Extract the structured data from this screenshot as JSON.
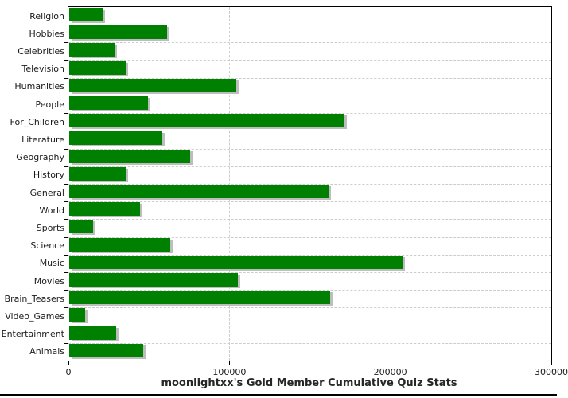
{
  "chart_data": {
    "type": "bar",
    "orientation": "horizontal",
    "title": "moonlightxx's Gold Member Cumulative Quiz Stats",
    "categories": [
      "Religion",
      "Hobbies",
      "Celebrities",
      "Television",
      "Humanities",
      "People",
      "For_Children",
      "Literature",
      "Geography",
      "History",
      "General",
      "World",
      "Sports",
      "Science",
      "Music",
      "Movies",
      "Brain_Teasers",
      "Video_Games",
      "Entertainment",
      "Animals"
    ],
    "values": [
      21000,
      61000,
      28000,
      35000,
      104000,
      49000,
      171000,
      58000,
      75000,
      35000,
      161000,
      44000,
      15000,
      63000,
      207000,
      105000,
      162000,
      10000,
      29000,
      46000
    ],
    "xlabel": "",
    "ylabel": "",
    "xlim": [
      0,
      300000
    ],
    "x_ticks": [
      0,
      100000,
      200000,
      300000
    ],
    "x_tick_labels": [
      "0",
      "100000",
      "200000",
      "300000"
    ],
    "grid": true,
    "legend": "none",
    "bar_color": "#008000",
    "bar_shadow_color": "#bdbdbd",
    "grid_color": "#cccccc",
    "axis_color": "#000000",
    "background_color": "#ffffff"
  }
}
